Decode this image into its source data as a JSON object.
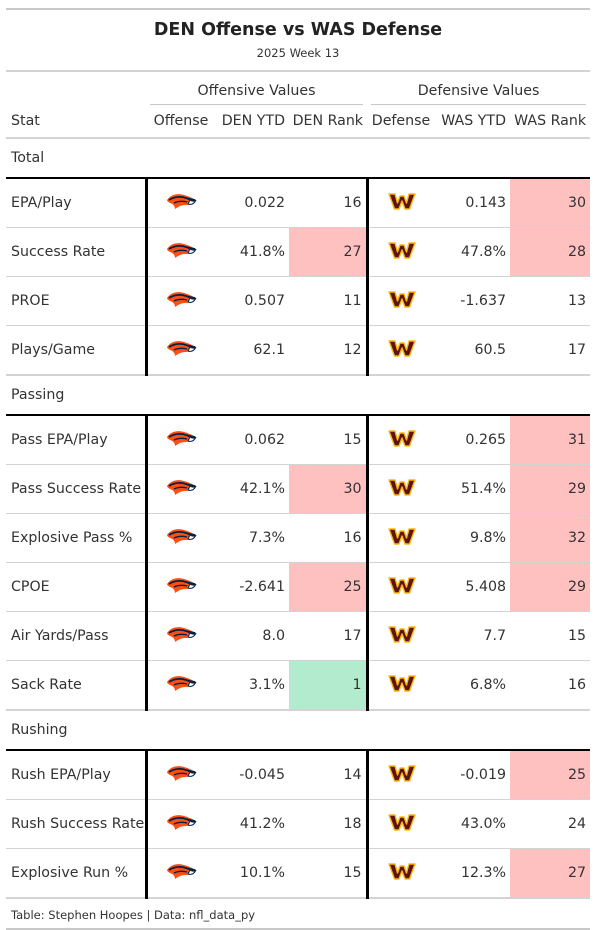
{
  "header": {
    "title": "DEN Offense vs WAS Defense",
    "subtitle": "2025 Week 13"
  },
  "spanners": {
    "offensive": "Offensive Values",
    "defensive": "Defensive Values"
  },
  "columns": {
    "stat": "Stat",
    "offense": "Offense",
    "den_ytd": "DEN YTD",
    "den_rank": "DEN Rank",
    "defense": "Defense",
    "was_ytd": "WAS YTD",
    "was_rank": "WAS Rank"
  },
  "icons": {
    "offense_logo": "broncos-logo-icon",
    "defense_logo": "commanders-logo-icon"
  },
  "colors": {
    "highlight_bad": "#ffc0c0",
    "highlight_good": "#b2ebcd",
    "broncos_orange": "#fb4f14",
    "broncos_navy": "#002244",
    "commanders_burgundy": "#5a1414",
    "commanders_gold": "#ffb612"
  },
  "groups": [
    {
      "name": "Total",
      "rows": [
        {
          "stat": "EPA/Play",
          "den_ytd": "0.022",
          "den_rank": "16",
          "den_hl": "",
          "was_ytd": "0.143",
          "was_rank": "30",
          "was_hl": "bad"
        },
        {
          "stat": "Success Rate",
          "den_ytd": "41.8%",
          "den_rank": "27",
          "den_hl": "bad",
          "was_ytd": "47.8%",
          "was_rank": "28",
          "was_hl": "bad"
        },
        {
          "stat": "PROE",
          "den_ytd": "0.507",
          "den_rank": "11",
          "den_hl": "",
          "was_ytd": "-1.637",
          "was_rank": "13",
          "was_hl": ""
        },
        {
          "stat": "Plays/Game",
          "den_ytd": "62.1",
          "den_rank": "12",
          "den_hl": "",
          "was_ytd": "60.5",
          "was_rank": "17",
          "was_hl": ""
        }
      ]
    },
    {
      "name": "Passing",
      "rows": [
        {
          "stat": "Pass EPA/Play",
          "den_ytd": "0.062",
          "den_rank": "15",
          "den_hl": "",
          "was_ytd": "0.265",
          "was_rank": "31",
          "was_hl": "bad"
        },
        {
          "stat": "Pass Success Rate",
          "den_ytd": "42.1%",
          "den_rank": "30",
          "den_hl": "bad",
          "was_ytd": "51.4%",
          "was_rank": "29",
          "was_hl": "bad"
        },
        {
          "stat": "Explosive Pass %",
          "den_ytd": "7.3%",
          "den_rank": "16",
          "den_hl": "",
          "was_ytd": "9.8%",
          "was_rank": "32",
          "was_hl": "bad"
        },
        {
          "stat": "CPOE",
          "den_ytd": "-2.641",
          "den_rank": "25",
          "den_hl": "bad",
          "was_ytd": "5.408",
          "was_rank": "29",
          "was_hl": "bad"
        },
        {
          "stat": "Air Yards/Pass",
          "den_ytd": "8.0",
          "den_rank": "17",
          "den_hl": "",
          "was_ytd": "7.7",
          "was_rank": "15",
          "was_hl": ""
        },
        {
          "stat": "Sack Rate",
          "den_ytd": "3.1%",
          "den_rank": "1",
          "den_hl": "good",
          "was_ytd": "6.8%",
          "was_rank": "16",
          "was_hl": ""
        }
      ]
    },
    {
      "name": "Rushing",
      "rows": [
        {
          "stat": "Rush EPA/Play",
          "den_ytd": "-0.045",
          "den_rank": "14",
          "den_hl": "",
          "was_ytd": "-0.019",
          "was_rank": "25",
          "was_hl": "bad"
        },
        {
          "stat": "Rush Success Rate",
          "den_ytd": "41.2%",
          "den_rank": "18",
          "den_hl": "",
          "was_ytd": "43.0%",
          "was_rank": "24",
          "was_hl": ""
        },
        {
          "stat": "Explosive Run %",
          "den_ytd": "10.1%",
          "den_rank": "15",
          "den_hl": "",
          "was_ytd": "12.3%",
          "was_rank": "27",
          "was_hl": "bad"
        }
      ]
    }
  ],
  "footer": {
    "caption": "Table: Stephen Hoopes | Data: nfl_data_py"
  }
}
